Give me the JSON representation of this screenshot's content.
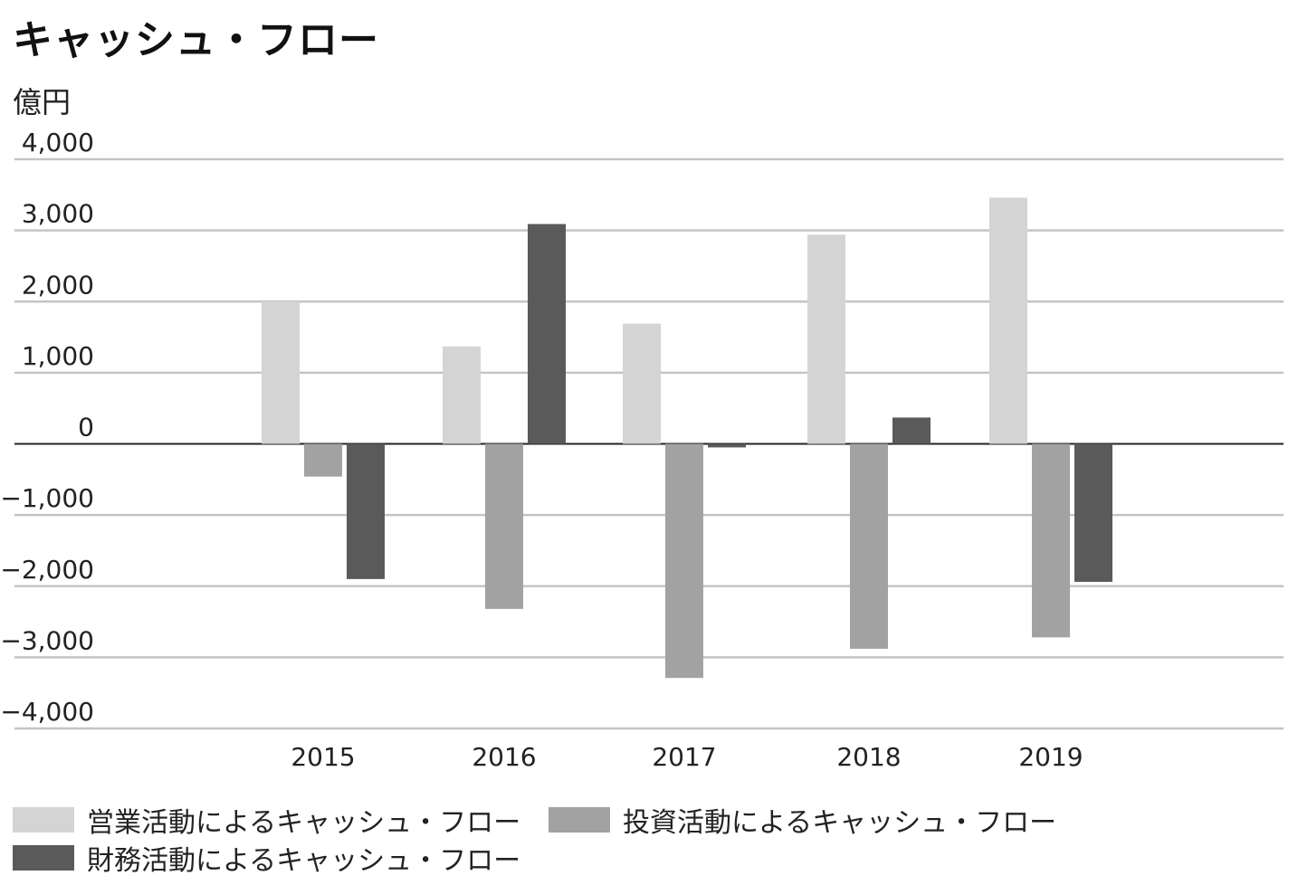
{
  "chart_data": {
    "type": "bar",
    "title": "キャッシュ・フロー",
    "ylabel": "億円",
    "xlabel": "",
    "categories": [
      "2015",
      "2016",
      "2017",
      "2018",
      "2019"
    ],
    "ylim": [
      -4000,
      4000
    ],
    "yticks": [
      4000,
      3000,
      2000,
      1000,
      0,
      -1000,
      -2000,
      -3000,
      -4000
    ],
    "ytick_labels": [
      "4,000",
      "3,000",
      "2,000",
      "1,000",
      "0",
      "−1,000",
      "−2,000",
      "−3,000",
      "−4,000"
    ],
    "grid": true,
    "legend_position": "bottom",
    "series": [
      {
        "name": "営業活動によるキャッシュ・フロー",
        "color": "#d4d4d4",
        "values": [
          2000,
          1370,
          1690,
          2940,
          3460
        ]
      },
      {
        "name": "投資活動によるキャッシュ・フロー",
        "color": "#a2a2a2",
        "values": [
          -460,
          -2320,
          -3290,
          -2880,
          -2720
        ]
      },
      {
        "name": "財務活動によるキャッシュ・フロー",
        "color": "#5b5a5b",
        "values": [
          -1900,
          3090,
          -50,
          370,
          -1940
        ]
      }
    ]
  }
}
